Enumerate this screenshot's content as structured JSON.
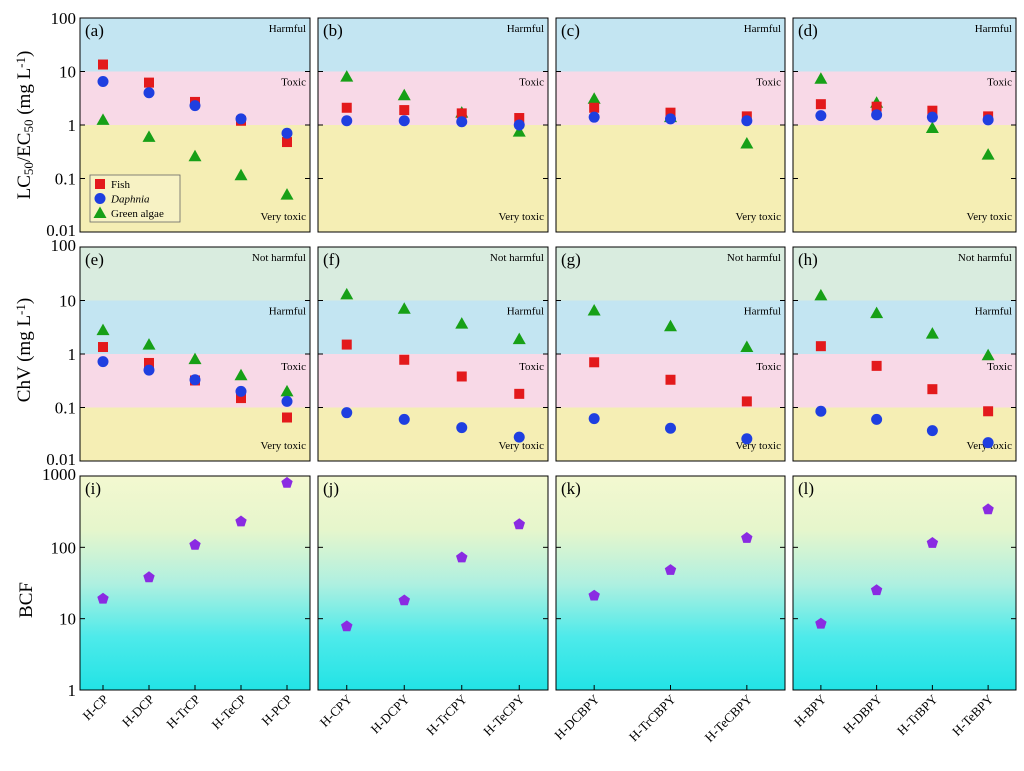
{
  "chart_data": {
    "type": "scatter",
    "y_axis_log": true,
    "rows": [
      {
        "ylabel": "LC50/EC50 (mg L-1)",
        "ylabel_main": "LC",
        "ylabel_sub1": "50",
        "ylabel_mid": "/EC",
        "ylabel_sub2": "50",
        "ylabel_tail": " (mg L",
        "ylabel_sup": "-1",
        "ylabel_end": ")",
        "ylim": [
          0.01,
          100
        ],
        "y_ticks": [
          "0.01",
          "0.1",
          "1",
          "10",
          "100"
        ],
        "zones": [
          {
            "label": "Harmful",
            "from": 10,
            "to": 100,
            "color": "#c3e5f2"
          },
          {
            "label": "Toxic",
            "from": 1,
            "to": 10,
            "color": "#f8d9e7"
          },
          {
            "label": "Very toxic",
            "from": 0.01,
            "to": 1,
            "color": "#f5eeb4"
          }
        ]
      },
      {
        "ylabel": "ChV (mg L-1)",
        "ylabel_main": "ChV (mg L",
        "ylabel_sup": "-1",
        "ylabel_end": ")",
        "ylim": [
          0.01,
          100
        ],
        "y_ticks": [
          "0.01",
          "0.1",
          "1",
          "10",
          "100"
        ],
        "zones": [
          {
            "label": "Not harmful",
            "from": 10,
            "to": 100,
            "color": "#d9ecdf"
          },
          {
            "label": "Harmful",
            "from": 1,
            "to": 10,
            "color": "#c3e5f2"
          },
          {
            "label": "Toxic",
            "from": 0.1,
            "to": 1,
            "color": "#f8d9e7"
          },
          {
            "label": "Very toxic",
            "from": 0.01,
            "to": 0.1,
            "color": "#f5eeb4"
          }
        ]
      },
      {
        "ylabel": "BCF",
        "ylim": [
          1,
          1000
        ],
        "y_ticks": [
          "1",
          "10",
          "100",
          "1000"
        ],
        "gradient": [
          "#f3f8d0",
          "#e6f6cc",
          "#b0f0e0",
          "#4eeaea",
          "#22e3e5"
        ]
      }
    ],
    "legend": {
      "entries": [
        {
          "name": "Fish",
          "marker": "square",
          "color": "#e31a1c",
          "italic": false
        },
        {
          "name": "Daphnia",
          "marker": "circle",
          "color": "#1f3fe0",
          "italic": true
        },
        {
          "name": "Green algae",
          "marker": "triangle",
          "color": "#17a017",
          "italic": false
        }
      ]
    },
    "bcf_marker": {
      "marker": "pentagon",
      "color": "#8a2be2"
    },
    "columns": [
      {
        "categories": [
          "H-CP",
          "H-DCP",
          "H-TrCP",
          "H-TeCP",
          "H-PCP"
        ],
        "acute": {
          "label": "(a)",
          "Fish": [
            13.5,
            6.2,
            2.7,
            1.2,
            0.48
          ],
          "Daphnia": [
            6.5,
            4.0,
            2.3,
            1.3,
            0.7
          ],
          "Green algae": [
            1.25,
            0.6,
            0.26,
            0.115,
            0.05
          ]
        },
        "chronic": {
          "label": "(e)",
          "Fish": [
            1.35,
            0.68,
            0.32,
            0.15,
            0.065
          ],
          "Daphnia": [
            0.72,
            0.5,
            0.33,
            0.2,
            0.13
          ],
          "Green algae": [
            2.8,
            1.5,
            0.8,
            0.4,
            0.2
          ]
        },
        "bcf": {
          "label": "(i)",
          "values": [
            19,
            38,
            108,
            230,
            800
          ]
        }
      },
      {
        "categories": [
          "H-CPY",
          "H-DCPY",
          "H-TrCPY",
          "H-TeCPY"
        ],
        "acute": {
          "label": "(b)",
          "Fish": [
            2.1,
            1.9,
            1.65,
            1.35
          ],
          "Daphnia": [
            1.2,
            1.2,
            1.15,
            1.0
          ],
          "Green algae": [
            8.0,
            3.6,
            1.7,
            0.75
          ]
        },
        "chronic": {
          "label": "(f)",
          "Fish": [
            1.5,
            0.78,
            0.38,
            0.18
          ],
          "Daphnia": [
            0.08,
            0.06,
            0.042,
            0.028
          ],
          "Green algae": [
            13.0,
            7.0,
            3.7,
            1.9
          ]
        },
        "bcf": {
          "label": "(j)",
          "values": [
            7.8,
            18,
            72,
            210
          ]
        }
      },
      {
        "categories": [
          "H-DCBPY",
          "H-TrCBPY",
          "H-TeCBPY"
        ],
        "acute": {
          "label": "(c)",
          "Fish": [
            2.1,
            1.7,
            1.45
          ],
          "Daphnia": [
            1.4,
            1.3,
            1.2
          ],
          "Green algae": [
            3.1,
            1.4,
            0.45
          ]
        },
        "chronic": {
          "label": "(g)",
          "Fish": [
            0.7,
            0.33,
            0.13
          ],
          "Daphnia": [
            0.062,
            0.041,
            0.026
          ],
          "Green algae": [
            6.5,
            3.3,
            1.35
          ]
        },
        "bcf": {
          "label": "(k)",
          "values": [
            21,
            48,
            135
          ]
        }
      },
      {
        "categories": [
          "H-BPY",
          "H-DBPY",
          "H-TrBPY",
          "H-TeBPY"
        ],
        "acute": {
          "label": "(d)",
          "Fish": [
            2.45,
            2.2,
            1.85,
            1.45
          ],
          "Daphnia": [
            1.5,
            1.55,
            1.4,
            1.25
          ],
          "Green algae": [
            7.3,
            2.6,
            0.88,
            0.28
          ]
        },
        "chronic": {
          "label": "(h)",
          "Fish": [
            1.4,
            0.6,
            0.22,
            0.085
          ],
          "Daphnia": [
            0.085,
            0.06,
            0.037,
            0.022
          ],
          "Green algae": [
            12.5,
            5.8,
            2.4,
            0.95
          ]
        },
        "bcf": {
          "label": "(l)",
          "values": [
            8.5,
            25,
            115,
            340
          ]
        }
      }
    ]
  }
}
